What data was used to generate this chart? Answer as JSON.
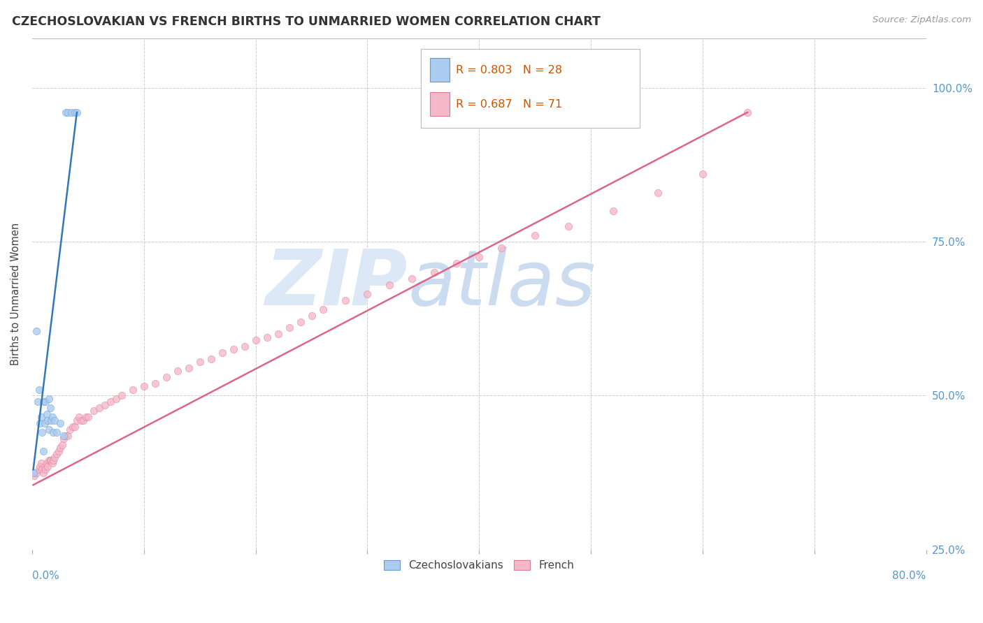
{
  "title": "CZECHOSLOVAKIAN VS FRENCH BIRTHS TO UNMARRIED WOMEN CORRELATION CHART",
  "source": "Source: ZipAtlas.com",
  "ylabel": "Births to Unmarried Women",
  "legend_czech": "R = 0.803   N = 28",
  "legend_french": "R = 0.687   N = 71",
  "legend_label_czech": "Czechoslovakians",
  "legend_label_french": "French",
  "czech_color": "#aaccf0",
  "french_color": "#f5b8c8",
  "czech_edge_color": "#6699cc",
  "french_edge_color": "#dd7799",
  "czech_line_color": "#3377bb",
  "french_line_color": "#dd6688",
  "background_color": "#ffffff",
  "grid_color": "#cccccc",
  "right_label_color": "#5599cc",
  "xmin": 0.0,
  "xmax": 0.8,
  "ymin": 0.25,
  "ymax": 1.08,
  "czech_scatter_x": [
    0.001,
    0.004,
    0.005,
    0.006,
    0.007,
    0.008,
    0.009,
    0.01,
    0.01,
    0.011,
    0.012,
    0.013,
    0.014,
    0.015,
    0.015,
    0.016,
    0.017,
    0.018,
    0.019,
    0.02,
    0.022,
    0.025,
    0.028,
    0.03,
    0.032,
    0.035,
    0.038,
    0.04
  ],
  "czech_scatter_y": [
    0.375,
    0.605,
    0.49,
    0.51,
    0.455,
    0.465,
    0.44,
    0.41,
    0.49,
    0.455,
    0.49,
    0.47,
    0.46,
    0.445,
    0.495,
    0.48,
    0.46,
    0.465,
    0.44,
    0.46,
    0.44,
    0.455,
    0.435,
    0.96,
    0.96,
    0.96,
    0.96,
    0.96
  ],
  "czech_trend_x": [
    0.001,
    0.04
  ],
  "czech_trend_y": [
    0.38,
    0.96
  ],
  "french_scatter_x": [
    0.002,
    0.004,
    0.006,
    0.007,
    0.008,
    0.009,
    0.01,
    0.011,
    0.012,
    0.013,
    0.014,
    0.015,
    0.016,
    0.017,
    0.018,
    0.019,
    0.02,
    0.022,
    0.024,
    0.025,
    0.027,
    0.028,
    0.03,
    0.032,
    0.034,
    0.036,
    0.038,
    0.04,
    0.042,
    0.044,
    0.046,
    0.048,
    0.05,
    0.055,
    0.06,
    0.065,
    0.07,
    0.075,
    0.08,
    0.09,
    0.1,
    0.11,
    0.12,
    0.13,
    0.14,
    0.15,
    0.16,
    0.17,
    0.18,
    0.19,
    0.2,
    0.21,
    0.22,
    0.23,
    0.24,
    0.25,
    0.26,
    0.28,
    0.3,
    0.32,
    0.34,
    0.36,
    0.38,
    0.4,
    0.42,
    0.45,
    0.48,
    0.52,
    0.56,
    0.6,
    0.64
  ],
  "french_scatter_y": [
    0.37,
    0.375,
    0.38,
    0.385,
    0.39,
    0.38,
    0.375,
    0.385,
    0.38,
    0.39,
    0.385,
    0.395,
    0.395,
    0.395,
    0.39,
    0.395,
    0.4,
    0.405,
    0.41,
    0.415,
    0.42,
    0.43,
    0.435,
    0.435,
    0.445,
    0.45,
    0.45,
    0.46,
    0.465,
    0.46,
    0.46,
    0.465,
    0.465,
    0.475,
    0.48,
    0.485,
    0.49,
    0.495,
    0.5,
    0.51,
    0.515,
    0.52,
    0.53,
    0.54,
    0.545,
    0.555,
    0.56,
    0.57,
    0.575,
    0.58,
    0.59,
    0.595,
    0.6,
    0.61,
    0.62,
    0.63,
    0.64,
    0.655,
    0.665,
    0.68,
    0.69,
    0.7,
    0.715,
    0.725,
    0.74,
    0.76,
    0.775,
    0.8,
    0.83,
    0.86,
    0.96
  ],
  "french_trend_x": [
    0.001,
    0.64
  ],
  "french_trend_y": [
    0.355,
    0.96
  ],
  "ytick_positions": [
    0.25,
    0.5,
    0.75,
    1.0
  ],
  "ytick_right_labels": [
    "25.0%",
    "50.0%",
    "75.0%",
    "100.0%"
  ],
  "xtick_left_label": "0.0%",
  "xtick_right_label": "80.0%"
}
